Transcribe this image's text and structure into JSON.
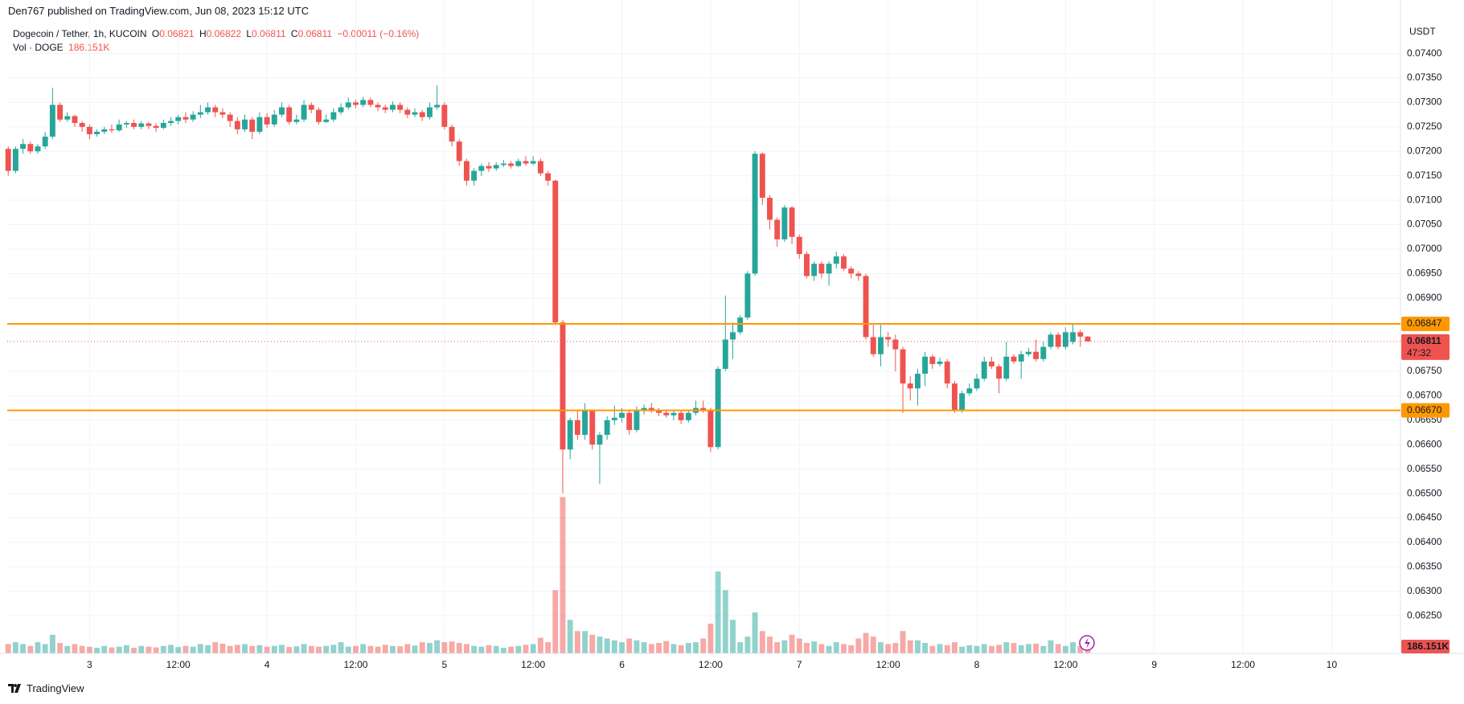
{
  "page": {
    "publisher": "Den767 published on TradingView.com, Jun 08, 2023 15:12 UTC",
    "brand": "TradingView"
  },
  "chart_data": {
    "type": "candlestick",
    "symbol": "Dogecoin / Tether, 1h, KUCOIN",
    "ohlc_keys": [
      "O",
      "H",
      "L",
      "C"
    ],
    "change": "−0.00011 (−0.16%)",
    "volume_title": "Vol · DOGE",
    "volume_label": "186.151K",
    "currency": "USDT",
    "countdown": "47:32",
    "up_color": "#26a69a",
    "down_color": "#ef5350",
    "grid": true,
    "x": [
      0,
      1,
      2,
      3,
      4,
      5,
      6,
      7,
      8,
      9,
      10,
      11,
      12,
      13,
      14,
      15,
      16,
      17,
      18,
      19,
      20,
      21,
      22,
      23,
      24,
      25,
      26,
      27,
      28,
      29,
      30,
      31,
      32,
      33,
      34,
      35,
      36,
      37,
      38,
      39,
      40,
      41,
      42,
      43,
      44,
      45,
      46,
      47,
      48,
      49,
      50,
      51,
      52,
      53,
      54,
      55,
      56,
      57,
      58,
      59,
      60,
      61,
      62,
      63,
      64,
      65,
      66,
      67,
      68,
      69,
      70,
      71,
      72,
      73,
      74,
      75,
      76,
      77,
      78,
      79,
      80,
      81,
      82,
      83,
      84,
      85,
      86,
      87,
      88,
      89,
      90,
      91,
      92,
      93,
      94,
      95,
      96,
      97,
      98,
      99,
      100,
      101,
      102,
      103,
      104,
      105,
      106,
      107,
      108,
      109,
      110,
      111,
      112,
      113,
      114,
      115,
      116,
      117,
      118,
      119,
      120,
      121,
      122,
      123,
      124,
      125,
      126,
      127,
      128,
      129,
      130,
      131,
      132,
      133,
      134,
      135,
      136,
      137,
      138,
      139,
      140,
      141,
      142,
      143,
      144,
      145,
      146
    ],
    "open": [
      0.07205,
      0.0716,
      0.07205,
      0.07215,
      0.072,
      0.0721,
      0.0723,
      0.07295,
      0.07265,
      0.07272,
      0.07258,
      0.0725,
      0.07235,
      0.0724,
      0.07245,
      0.07243,
      0.07255,
      0.07258,
      0.0725,
      0.07257,
      0.07252,
      0.07248,
      0.07258,
      0.07262,
      0.0727,
      0.07265,
      0.07275,
      0.0728,
      0.0729,
      0.0728,
      0.07275,
      0.07262,
      0.07245,
      0.07265,
      0.0724,
      0.0727,
      0.07255,
      0.07275,
      0.0729,
      0.0726,
      0.07265,
      0.07295,
      0.07285,
      0.0726,
      0.07265,
      0.0728,
      0.0729,
      0.073,
      0.07295,
      0.07305,
      0.07295,
      0.0729,
      0.07285,
      0.07295,
      0.07285,
      0.07275,
      0.0728,
      0.0727,
      0.0729,
      0.07295,
      0.0725,
      0.0722,
      0.0718,
      0.0714,
      0.0716,
      0.0717,
      0.07165,
      0.07172,
      0.07175,
      0.0717,
      0.0718,
      0.07175,
      0.0718,
      0.07155,
      0.0714,
      0.0685,
      0.0659,
      0.0665,
      0.0662,
      0.0667,
      0.066,
      0.0662,
      0.0665,
      0.06655,
      0.06665,
      0.0663,
      0.0667,
      0.06675,
      0.0667,
      0.06665,
      0.0666,
      0.06665,
      0.0665,
      0.06665,
      0.06675,
      0.0667,
      0.06595,
      0.06755,
      0.06815,
      0.0683,
      0.0686,
      0.0695,
      0.07195,
      0.07105,
      0.0706,
      0.0702,
      0.07085,
      0.07025,
      0.0699,
      0.06945,
      0.0697,
      0.0695,
      0.0697,
      0.06985,
      0.0696,
      0.0695,
      0.06945,
      0.0682,
      0.06785,
      0.0682,
      0.06815,
      0.06795,
      0.06725,
      0.06715,
      0.06745,
      0.0678,
      0.06765,
      0.0677,
      0.06725,
      0.0667,
      0.06705,
      0.06715,
      0.06735,
      0.0677,
      0.0676,
      0.06735,
      0.0678,
      0.0677,
      0.06785,
      0.0679,
      0.06775,
      0.068,
      0.06825,
      0.068,
      0.0681,
      0.0683,
      0.06821
    ],
    "high": [
      0.0721,
      0.0721,
      0.07225,
      0.0722,
      0.07215,
      0.0724,
      0.0733,
      0.073,
      0.0728,
      0.07275,
      0.07262,
      0.07255,
      0.07245,
      0.0725,
      0.07255,
      0.07265,
      0.07262,
      0.07265,
      0.07262,
      0.0726,
      0.07258,
      0.07265,
      0.0727,
      0.07275,
      0.0728,
      0.07282,
      0.07295,
      0.073,
      0.07295,
      0.07288,
      0.0728,
      0.0727,
      0.07275,
      0.0727,
      0.0728,
      0.07278,
      0.07285,
      0.073,
      0.07295,
      0.07275,
      0.07305,
      0.073,
      0.0729,
      0.07275,
      0.07288,
      0.07298,
      0.0731,
      0.07305,
      0.07312,
      0.0731,
      0.073,
      0.07295,
      0.07302,
      0.073,
      0.0729,
      0.07288,
      0.07285,
      0.073,
      0.07335,
      0.073,
      0.07255,
      0.07225,
      0.07185,
      0.07165,
      0.07175,
      0.07178,
      0.07178,
      0.07182,
      0.0718,
      0.07185,
      0.0719,
      0.0719,
      0.07185,
      0.0716,
      0.07142,
      0.06855,
      0.06655,
      0.0667,
      0.06685,
      0.06672,
      0.06625,
      0.06658,
      0.0668,
      0.06675,
      0.0667,
      0.06678,
      0.06682,
      0.06685,
      0.06675,
      0.06672,
      0.06672,
      0.0667,
      0.06672,
      0.0669,
      0.0669,
      0.06675,
      0.0676,
      0.06905,
      0.0685,
      0.06865,
      0.06955,
      0.072,
      0.07198,
      0.0711,
      0.07065,
      0.0709,
      0.07088,
      0.0703,
      0.06995,
      0.06975,
      0.06975,
      0.06975,
      0.06995,
      0.0699,
      0.06965,
      0.06955,
      0.0695,
      0.06845,
      0.06845,
      0.0683,
      0.06825,
      0.068,
      0.0674,
      0.06755,
      0.0679,
      0.06785,
      0.06778,
      0.06775,
      0.0673,
      0.0671,
      0.06725,
      0.06745,
      0.0678,
      0.0678,
      0.06765,
      0.0681,
      0.06785,
      0.06792,
      0.06798,
      0.06815,
      0.0681,
      0.0683,
      0.0683,
      0.0684,
      0.06847,
      0.06835,
      0.06822
    ],
    "low": [
      0.0715,
      0.07155,
      0.07195,
      0.07195,
      0.07195,
      0.07205,
      0.07225,
      0.0726,
      0.0726,
      0.0725,
      0.0724,
      0.07225,
      0.0723,
      0.07235,
      0.07238,
      0.0724,
      0.07248,
      0.07245,
      0.07245,
      0.07245,
      0.0724,
      0.07245,
      0.07252,
      0.07255,
      0.07258,
      0.0726,
      0.07268,
      0.07275,
      0.0727,
      0.07268,
      0.0725,
      0.07235,
      0.0724,
      0.07225,
      0.07235,
      0.07248,
      0.0725,
      0.0727,
      0.07255,
      0.07255,
      0.0726,
      0.07278,
      0.07255,
      0.07258,
      0.0726,
      0.07275,
      0.07285,
      0.07288,
      0.0729,
      0.0729,
      0.07282,
      0.07278,
      0.0728,
      0.07278,
      0.07268,
      0.0727,
      0.07262,
      0.07265,
      0.07285,
      0.07245,
      0.0721,
      0.0717,
      0.0713,
      0.0713,
      0.0715,
      0.07158,
      0.0716,
      0.07168,
      0.07165,
      0.07168,
      0.0717,
      0.07172,
      0.0715,
      0.0713,
      0.06848,
      0.065,
      0.0657,
      0.0661,
      0.0661,
      0.0659,
      0.0652,
      0.0661,
      0.0664,
      0.06645,
      0.0662,
      0.06625,
      0.06662,
      0.06665,
      0.06658,
      0.06655,
      0.0665,
      0.06642,
      0.06645,
      0.0666,
      0.06665,
      0.06585,
      0.0659,
      0.0675,
      0.06775,
      0.06825,
      0.06855,
      0.06945,
      0.0709,
      0.0704,
      0.07005,
      0.07015,
      0.0701,
      0.0698,
      0.0694,
      0.06935,
      0.0694,
      0.06925,
      0.0696,
      0.06955,
      0.0694,
      0.06935,
      0.06815,
      0.0678,
      0.0676,
      0.068,
      0.0675,
      0.06665,
      0.0669,
      0.0668,
      0.0672,
      0.06755,
      0.0676,
      0.06715,
      0.06665,
      0.06665,
      0.067,
      0.0671,
      0.0673,
      0.06755,
      0.06705,
      0.0673,
      0.06765,
      0.06735,
      0.0678,
      0.0677,
      0.0677,
      0.06795,
      0.06795,
      0.06795,
      0.06805,
      0.068,
      0.06811
    ],
    "close": [
      0.0716,
      0.07205,
      0.07215,
      0.072,
      0.0721,
      0.0723,
      0.07295,
      0.07265,
      0.07272,
      0.07258,
      0.0725,
      0.07235,
      0.0724,
      0.07245,
      0.07243,
      0.07255,
      0.07258,
      0.0725,
      0.07257,
      0.07252,
      0.07248,
      0.07258,
      0.07262,
      0.0727,
      0.07265,
      0.07275,
      0.0728,
      0.0729,
      0.0728,
      0.07275,
      0.07262,
      0.07245,
      0.07265,
      0.0724,
      0.0727,
      0.07255,
      0.07275,
      0.0729,
      0.0726,
      0.07265,
      0.07295,
      0.07285,
      0.0726,
      0.07265,
      0.0728,
      0.0729,
      0.073,
      0.07295,
      0.07305,
      0.07295,
      0.0729,
      0.07285,
      0.07295,
      0.07285,
      0.07275,
      0.0728,
      0.0727,
      0.0729,
      0.07295,
      0.0725,
      0.0722,
      0.0718,
      0.0714,
      0.0716,
      0.0717,
      0.07165,
      0.07172,
      0.07175,
      0.0717,
      0.0718,
      0.07175,
      0.0718,
      0.07155,
      0.0714,
      0.0685,
      0.0659,
      0.0665,
      0.0662,
      0.0667,
      0.066,
      0.0662,
      0.0665,
      0.06655,
      0.06665,
      0.0663,
      0.0667,
      0.06675,
      0.0667,
      0.06665,
      0.0666,
      0.06665,
      0.0665,
      0.06665,
      0.06675,
      0.0667,
      0.06595,
      0.06755,
      0.06815,
      0.0683,
      0.0686,
      0.0695,
      0.07195,
      0.07105,
      0.0706,
      0.0702,
      0.07085,
      0.07025,
      0.0699,
      0.06945,
      0.0697,
      0.0695,
      0.0697,
      0.06985,
      0.0696,
      0.0695,
      0.06945,
      0.0682,
      0.06785,
      0.0682,
      0.06815,
      0.06795,
      0.06725,
      0.06715,
      0.06745,
      0.0678,
      0.06765,
      0.0677,
      0.06725,
      0.0667,
      0.06705,
      0.06715,
      0.06735,
      0.0677,
      0.0676,
      0.06735,
      0.0678,
      0.0677,
      0.06785,
      0.0679,
      0.06775,
      0.068,
      0.06825,
      0.068,
      0.0683,
      0.0683,
      0.06821,
      0.06811
    ],
    "volume": [
      250000,
      300000,
      250000,
      200000,
      300000,
      250000,
      500000,
      280000,
      200000,
      250000,
      200000,
      180000,
      150000,
      200000,
      160000,
      180000,
      220000,
      150000,
      200000,
      180000,
      160000,
      200000,
      230000,
      170000,
      200000,
      180000,
      250000,
      220000,
      300000,
      260000,
      200000,
      230000,
      250000,
      200000,
      220000,
      180000,
      200000,
      230000,
      170000,
      190000,
      250000,
      200000,
      180000,
      200000,
      230000,
      300000,
      180000,
      200000,
      250000,
      200000,
      180000,
      230000,
      200000,
      190000,
      250000,
      210000,
      300000,
      280000,
      350000,
      300000,
      320000,
      280000,
      250000,
      200000,
      180000,
      220000,
      200000,
      150000,
      180000,
      200000,
      230000,
      250000,
      420000,
      300000,
      1700000,
      4200000,
      900000,
      600000,
      600000,
      500000,
      450000,
      400000,
      350000,
      300000,
      400000,
      350000,
      300000,
      250000,
      280000,
      330000,
      250000,
      220000,
      280000,
      300000,
      400000,
      800000,
      2200000,
      1700000,
      900000,
      300000,
      450000,
      1100000,
      600000,
      450000,
      300000,
      350000,
      500000,
      400000,
      280000,
      320000,
      250000,
      200000,
      300000,
      250000,
      220000,
      400000,
      550000,
      450000,
      300000,
      250000,
      280000,
      600000,
      350000,
      350000,
      280000,
      200000,
      250000,
      220000,
      300000,
      180000,
      220000,
      200000,
      250000,
      200000,
      230000,
      300000,
      280000,
      220000,
      250000,
      260000,
      200000,
      350000,
      250000,
      200000,
      300000,
      200000,
      186151
    ],
    "xlim": [
      -0.13,
      188.3
    ],
    "xticks": [
      {
        "value": 11,
        "label": "3"
      },
      {
        "value": 23,
        "label": "12:00"
      },
      {
        "value": 35,
        "label": "4"
      },
      {
        "value": 47,
        "label": "12:00"
      },
      {
        "value": 59,
        "label": "5"
      },
      {
        "value": 71,
        "label": "12:00"
      },
      {
        "value": 83,
        "label": "6"
      },
      {
        "value": 95,
        "label": "12:00"
      },
      {
        "value": 107,
        "label": "7"
      },
      {
        "value": 119,
        "label": "12:00"
      },
      {
        "value": 131,
        "label": "8"
      },
      {
        "value": 143,
        "label": "12:00"
      },
      {
        "value": 155,
        "label": "9"
      },
      {
        "value": 167,
        "label": "12:00"
      },
      {
        "value": 179,
        "label": "10"
      }
    ],
    "ylim": [
      0.06173,
      0.07452
    ],
    "yticks": [
      {
        "value": 0.0625,
        "label": "0.06250"
      },
      {
        "value": 0.063,
        "label": "0.06300"
      },
      {
        "value": 0.0635,
        "label": "0.06350"
      },
      {
        "value": 0.064,
        "label": "0.06400"
      },
      {
        "value": 0.0645,
        "label": "0.06450"
      },
      {
        "value": 0.065,
        "label": "0.06500"
      },
      {
        "value": 0.0655,
        "label": "0.06550"
      },
      {
        "value": 0.066,
        "label": "0.06600"
      },
      {
        "value": 0.0665,
        "label": "0.06650"
      },
      {
        "value": 0.067,
        "label": "0.06700"
      },
      {
        "value": 0.0675,
        "label": "0.06750"
      },
      {
        "value": 0.069,
        "label": "0.06900"
      },
      {
        "value": 0.0695,
        "label": "0.06950"
      },
      {
        "value": 0.07,
        "label": "0.07000"
      },
      {
        "value": 0.0705,
        "label": "0.07050"
      },
      {
        "value": 0.071,
        "label": "0.07100"
      },
      {
        "value": 0.0715,
        "label": "0.07150"
      },
      {
        "value": 0.072,
        "label": "0.07200"
      },
      {
        "value": 0.0725,
        "label": "0.07250"
      },
      {
        "value": 0.073,
        "label": "0.07300"
      },
      {
        "value": 0.0735,
        "label": "0.07350"
      },
      {
        "value": 0.074,
        "label": "0.07400"
      }
    ],
    "volume_ylim": [
      0,
      16800000
    ],
    "levels": [
      {
        "price": 0.06847,
        "color": "#ff9800"
      },
      {
        "price": 0.0667,
        "label": "0.06670",
        "color": "#ff9800"
      }
    ]
  }
}
